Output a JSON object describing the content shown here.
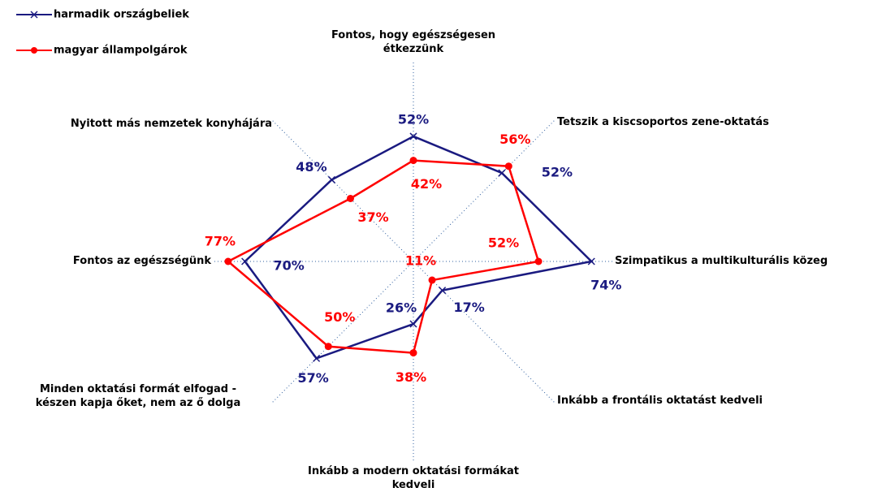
{
  "chart_data": {
    "type": "radar",
    "categories": [
      "Fontos, hogy egészségesen\nétkezzünk",
      "Tetszik a kiscsoportos zene-oktatás",
      "Szimpatikus a multikulturális közeg",
      "Inkább a frontális oktatást kedveli",
      "Inkább a modern oktatási formákat\nkedveli",
      "Minden oktatási formát elfogad -\nkészen kapja őket, nem az ő dolga",
      "Fontos az egészségünk",
      "Nyitott más nemzetek konyhájára"
    ],
    "rlim": [
      0,
      80
    ],
    "legend": "top-left",
    "series": [
      {
        "name": "harmadik országbeliek",
        "color": "#1a1a80",
        "values": [
          52,
          52,
          74,
          17,
          26,
          57,
          70,
          48
        ],
        "value_labels": [
          "52%",
          "52%",
          "74%",
          "17%",
          "26%",
          "57%",
          "70%",
          "48%"
        ]
      },
      {
        "name": "magyar állampolgárok",
        "color": "#ff0000",
        "values": [
          42,
          56,
          52,
          11,
          38,
          50,
          77,
          37
        ],
        "value_labels": [
          "42%",
          "56%",
          "52%",
          "11%",
          "38%",
          "50%",
          "77%",
          "37%"
        ]
      }
    ]
  }
}
